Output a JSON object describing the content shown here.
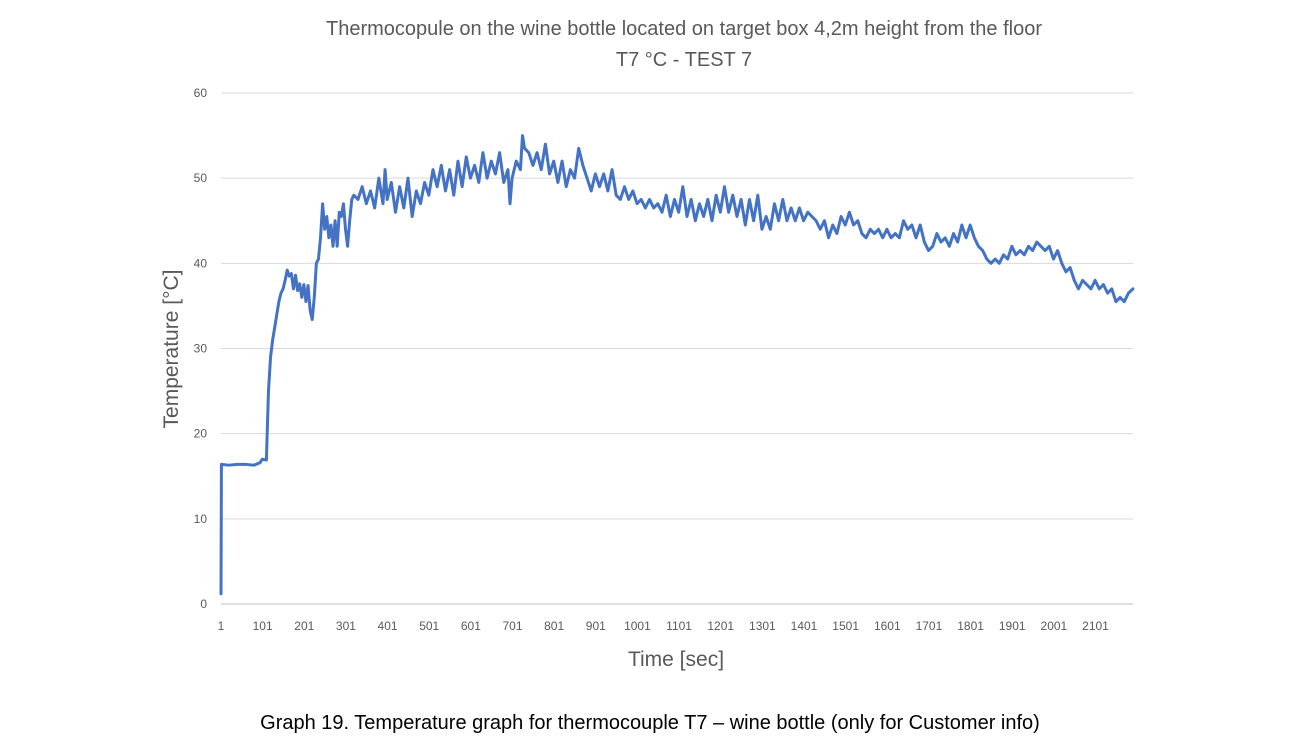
{
  "chart_data": {
    "type": "line",
    "title": "Thermocopule on the wine bottle located on target box 4,2m height from the floor",
    "subtitle": "T7  °C - TEST 7",
    "xlabel": "Time [sec]",
    "ylabel": "Temperature [°C]",
    "xlim": [
      1,
      2191
    ],
    "ylim": [
      0,
      60
    ],
    "x_ticks": [
      "1",
      "101",
      "201",
      "301",
      "401",
      "501",
      "601",
      "701",
      "801",
      "901",
      "1001",
      "1101",
      "1201",
      "1301",
      "1401",
      "1501",
      "1601",
      "1701",
      "1801",
      "1901",
      "2001",
      "2101"
    ],
    "y_ticks": [
      "0",
      "10",
      "20",
      "30",
      "40",
      "50",
      "60"
    ],
    "grid": "horizontal",
    "legend": "none",
    "series_color": "#4472C4",
    "series": [
      {
        "points": [
          [
            1,
            1.2
          ],
          [
            2,
            16.4
          ],
          [
            20,
            16.3
          ],
          [
            40,
            16.4
          ],
          [
            60,
            16.4
          ],
          [
            80,
            16.3
          ],
          [
            95,
            16.6
          ],
          [
            100,
            17.0
          ],
          [
            110,
            16.9
          ],
          [
            115,
            25
          ],
          [
            120,
            29
          ],
          [
            125,
            31
          ],
          [
            130,
            32.5
          ],
          [
            135,
            34
          ],
          [
            140,
            35.5
          ],
          [
            145,
            36.5
          ],
          [
            150,
            37
          ],
          [
            155,
            38
          ],
          [
            160,
            39.2
          ],
          [
            165,
            38.5
          ],
          [
            170,
            38.8
          ],
          [
            175,
            37
          ],
          [
            180,
            38.6
          ],
          [
            185,
            36.8
          ],
          [
            190,
            37.6
          ],
          [
            195,
            36
          ],
          [
            200,
            37.5
          ],
          [
            205,
            35.5
          ],
          [
            210,
            37.4
          ],
          [
            215,
            34.5
          ],
          [
            220,
            33.4
          ],
          [
            225,
            36
          ],
          [
            230,
            40
          ],
          [
            235,
            40.5
          ],
          [
            240,
            43
          ],
          [
            245,
            47
          ],
          [
            250,
            44
          ],
          [
            255,
            45.5
          ],
          [
            260,
            43
          ],
          [
            265,
            44.5
          ],
          [
            270,
            42
          ],
          [
            275,
            45
          ],
          [
            280,
            42
          ],
          [
            285,
            46
          ],
          [
            290,
            45.5
          ],
          [
            295,
            47
          ],
          [
            300,
            44
          ],
          [
            305,
            42
          ],
          [
            310,
            45
          ],
          [
            315,
            47.5
          ],
          [
            320,
            48
          ],
          [
            330,
            47.5
          ],
          [
            340,
            49
          ],
          [
            350,
            47
          ],
          [
            360,
            48.5
          ],
          [
            370,
            46.5
          ],
          [
            380,
            50
          ],
          [
            390,
            47
          ],
          [
            395,
            51
          ],
          [
            400,
            47.5
          ],
          [
            410,
            49.5
          ],
          [
            420,
            46
          ],
          [
            430,
            49
          ],
          [
            440,
            46.5
          ],
          [
            450,
            50
          ],
          [
            460,
            45.5
          ],
          [
            470,
            48.5
          ],
          [
            480,
            47
          ],
          [
            490,
            49.5
          ],
          [
            500,
            48
          ],
          [
            510,
            51
          ],
          [
            520,
            49
          ],
          [
            530,
            51.5
          ],
          [
            540,
            48.5
          ],
          [
            550,
            51
          ],
          [
            560,
            48
          ],
          [
            570,
            52
          ],
          [
            580,
            49
          ],
          [
            590,
            52.5
          ],
          [
            600,
            50
          ],
          [
            610,
            51.5
          ],
          [
            620,
            49.5
          ],
          [
            630,
            53
          ],
          [
            640,
            50
          ],
          [
            650,
            52
          ],
          [
            660,
            50.5
          ],
          [
            670,
            53
          ],
          [
            680,
            49.5
          ],
          [
            690,
            51
          ],
          [
            695,
            47
          ],
          [
            700,
            50
          ],
          [
            710,
            52
          ],
          [
            720,
            51
          ],
          [
            725,
            55
          ],
          [
            730,
            53.5
          ],
          [
            740,
            53
          ],
          [
            750,
            51.5
          ],
          [
            760,
            53
          ],
          [
            770,
            51
          ],
          [
            780,
            54
          ],
          [
            790,
            50.5
          ],
          [
            800,
            52
          ],
          [
            810,
            49.5
          ],
          [
            820,
            52
          ],
          [
            830,
            49
          ],
          [
            840,
            51
          ],
          [
            850,
            50
          ],
          [
            860,
            53.5
          ],
          [
            870,
            51.5
          ],
          [
            880,
            50
          ],
          [
            890,
            48.5
          ],
          [
            900,
            50.5
          ],
          [
            910,
            49
          ],
          [
            920,
            50.5
          ],
          [
            930,
            48.5
          ],
          [
            940,
            51
          ],
          [
            950,
            48
          ],
          [
            960,
            47.5
          ],
          [
            970,
            49
          ],
          [
            980,
            47.5
          ],
          [
            990,
            48.5
          ],
          [
            1000,
            47
          ],
          [
            1010,
            47.5
          ],
          [
            1020,
            46.5
          ],
          [
            1030,
            47.5
          ],
          [
            1040,
            46.5
          ],
          [
            1050,
            47
          ],
          [
            1060,
            46
          ],
          [
            1070,
            48
          ],
          [
            1080,
            45.5
          ],
          [
            1090,
            47.5
          ],
          [
            1100,
            46
          ],
          [
            1110,
            49
          ],
          [
            1120,
            45.5
          ],
          [
            1130,
            47.5
          ],
          [
            1140,
            45
          ],
          [
            1150,
            47
          ],
          [
            1160,
            45.5
          ],
          [
            1170,
            47.5
          ],
          [
            1180,
            45
          ],
          [
            1190,
            48
          ],
          [
            1200,
            46
          ],
          [
            1210,
            49
          ],
          [
            1220,
            46
          ],
          [
            1230,
            48
          ],
          [
            1240,
            45.5
          ],
          [
            1250,
            47.5
          ],
          [
            1260,
            44.5
          ],
          [
            1270,
            47.5
          ],
          [
            1280,
            45
          ],
          [
            1290,
            48
          ],
          [
            1300,
            44
          ],
          [
            1310,
            45.5
          ],
          [
            1320,
            44
          ],
          [
            1330,
            47
          ],
          [
            1340,
            45
          ],
          [
            1350,
            47.5
          ],
          [
            1360,
            45
          ],
          [
            1370,
            46.5
          ],
          [
            1380,
            45
          ],
          [
            1390,
            46.5
          ],
          [
            1400,
            45
          ],
          [
            1410,
            46
          ],
          [
            1420,
            45.5
          ],
          [
            1430,
            45
          ],
          [
            1440,
            44
          ],
          [
            1450,
            45
          ],
          [
            1460,
            43
          ],
          [
            1470,
            44.5
          ],
          [
            1480,
            43.5
          ],
          [
            1490,
            45.5
          ],
          [
            1500,
            44.5
          ],
          [
            1510,
            46
          ],
          [
            1520,
            44.5
          ],
          [
            1530,
            45
          ],
          [
            1540,
            43.5
          ],
          [
            1550,
            43
          ],
          [
            1560,
            44
          ],
          [
            1570,
            43.5
          ],
          [
            1580,
            44
          ],
          [
            1590,
            43
          ],
          [
            1600,
            44
          ],
          [
            1610,
            43
          ],
          [
            1620,
            43.5
          ],
          [
            1630,
            43
          ],
          [
            1640,
            45
          ],
          [
            1650,
            44
          ],
          [
            1660,
            44.5
          ],
          [
            1670,
            43
          ],
          [
            1680,
            44.5
          ],
          [
            1690,
            42.5
          ],
          [
            1700,
            41.5
          ],
          [
            1710,
            42
          ],
          [
            1720,
            43.5
          ],
          [
            1730,
            42.5
          ],
          [
            1740,
            43
          ],
          [
            1750,
            42
          ],
          [
            1760,
            43.5
          ],
          [
            1770,
            42.5
          ],
          [
            1780,
            44.5
          ],
          [
            1790,
            43
          ],
          [
            1800,
            44.5
          ],
          [
            1810,
            43
          ],
          [
            1820,
            42
          ],
          [
            1830,
            41.5
          ],
          [
            1840,
            40.5
          ],
          [
            1850,
            40
          ],
          [
            1860,
            40.5
          ],
          [
            1870,
            40
          ],
          [
            1880,
            41
          ],
          [
            1890,
            40.5
          ],
          [
            1900,
            42
          ],
          [
            1910,
            41
          ],
          [
            1920,
            41.5
          ],
          [
            1930,
            41
          ],
          [
            1940,
            42
          ],
          [
            1950,
            41.5
          ],
          [
            1960,
            42.5
          ],
          [
            1970,
            42
          ],
          [
            1980,
            41.5
          ],
          [
            1990,
            42
          ],
          [
            2000,
            40.5
          ],
          [
            2010,
            41.5
          ],
          [
            2020,
            40
          ],
          [
            2030,
            39
          ],
          [
            2040,
            39.5
          ],
          [
            2050,
            38
          ],
          [
            2060,
            37
          ],
          [
            2070,
            38
          ],
          [
            2080,
            37.5
          ],
          [
            2090,
            37
          ],
          [
            2100,
            38
          ],
          [
            2110,
            37
          ],
          [
            2120,
            37.5
          ],
          [
            2130,
            36.5
          ],
          [
            2140,
            37
          ],
          [
            2150,
            35.5
          ],
          [
            2160,
            36
          ],
          [
            2170,
            35.5
          ],
          [
            2180,
            36.5
          ],
          [
            2191,
            37
          ]
        ]
      }
    ]
  },
  "caption": "Graph 19. Temperature graph for thermocouple T7 – wine bottle (only for Customer info)"
}
